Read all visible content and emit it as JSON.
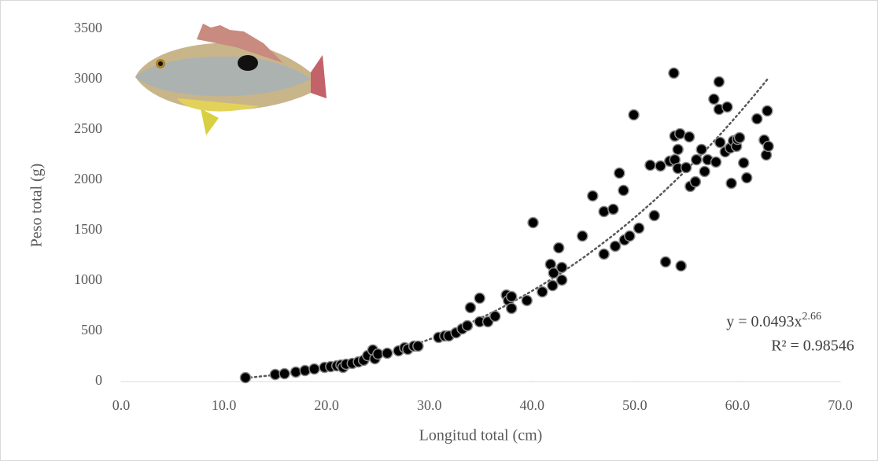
{
  "chart_data": {
    "type": "scatter",
    "x_label": "Longitud total (cm)",
    "y_label": "Peso total (g)",
    "xlim": [
      0,
      70
    ],
    "ylim": [
      0,
      3500
    ],
    "xticks": [
      {
        "value": 0,
        "label": "0.0"
      },
      {
        "value": 10,
        "label": "10.0"
      },
      {
        "value": 20,
        "label": "20.0"
      },
      {
        "value": 30,
        "label": "30.0"
      },
      {
        "value": 40,
        "label": "40.0"
      },
      {
        "value": 50,
        "label": "50.0"
      },
      {
        "value": 60,
        "label": "60.0"
      },
      {
        "value": 70,
        "label": "70.0"
      }
    ],
    "yticks": [
      0,
      500,
      1000,
      1500,
      2000,
      2500,
      3000,
      3500
    ],
    "grid": false,
    "color": "#000000",
    "x": [
      12.1,
      15.0,
      15.9,
      17.0,
      17.9,
      18.8,
      19.8,
      20.4,
      21.0,
      21.4,
      21.6,
      21.9,
      22.5,
      23.1,
      23.6,
      24.0,
      24.5,
      24.7,
      25.0,
      25.9,
      27.0,
      27.6,
      27.9,
      28.5,
      28.9,
      30.9,
      31.5,
      31.9,
      32.6,
      33.2,
      33.7,
      34.0,
      34.9,
      34.9,
      35.7,
      36.4,
      37.5,
      37.7,
      38.0,
      38.0,
      39.5,
      40.1,
      41.0,
      41.8,
      42.0,
      42.1,
      42.6,
      42.9,
      42.9,
      44.9,
      45.9,
      47.0,
      47.0,
      47.9,
      48.1,
      48.5,
      48.9,
      49.0,
      49.5,
      49.9,
      50.4,
      51.5,
      51.9,
      52.5,
      53.0,
      53.4,
      53.8,
      53.9,
      53.9,
      54.2,
      54.2,
      54.4,
      54.5,
      55.0,
      55.3,
      55.4,
      55.9,
      56.0,
      56.5,
      56.8,
      57.1,
      57.7,
      57.9,
      58.2,
      58.2,
      58.3,
      58.8,
      59.0,
      59.3,
      59.4,
      59.6,
      59.9,
      60.0,
      60.2,
      60.6,
      60.9,
      61.9,
      62.6,
      62.8,
      62.9,
      63.0
    ],
    "values": [
      39,
      70,
      78,
      94,
      109,
      125,
      141,
      148,
      156,
      164,
      141,
      172,
      180,
      195,
      211,
      258,
      313,
      227,
      273,
      281,
      305,
      336,
      320,
      352,
      352,
      438,
      453,
      453,
      484,
      523,
      555,
      734,
      828,
      594,
      594,
      648,
      859,
      805,
      727,
      844,
      805,
      1578,
      891,
      1164,
      953,
      1078,
      1328,
      1133,
      1008,
      1445,
      1844,
      1266,
      1688,
      1711,
      1344,
      2070,
      1898,
      1406,
      1445,
      2648,
      1523,
      2148,
      1648,
      2141,
      1188,
      2188,
      3063,
      2203,
      2438,
      2305,
      2117,
      2461,
      1148,
      2125,
      2430,
      1938,
      1984,
      2203,
      2305,
      2086,
      2203,
      2805,
      2180,
      2977,
      2703,
      2375,
      2281,
      2727,
      2320,
      1969,
      2391,
      2336,
      2406,
      2422,
      2172,
      2023,
      2609,
      2398,
      2250,
      2688,
      2336
    ],
    "trendline": {
      "type": "power",
      "a": 0.0493,
      "b": 2.66,
      "color": "#595959"
    },
    "equation": {
      "text": "y = 0.0493x",
      "exponent": "2.66"
    },
    "r2_label": "R² = 0.98546"
  }
}
